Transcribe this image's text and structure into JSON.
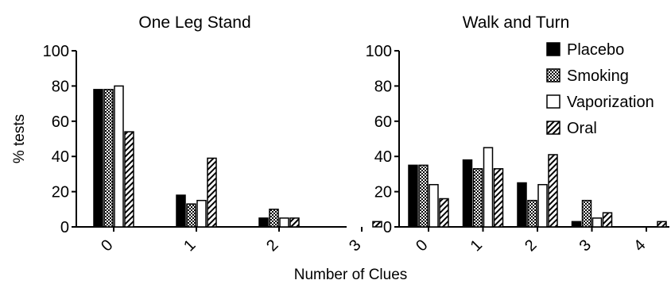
{
  "ylabel": "% tests",
  "xlabel": "Number of Clues",
  "legend": [
    {
      "name": "Placebo",
      "pattern": "solid"
    },
    {
      "name": "Smoking",
      "pattern": "checker"
    },
    {
      "name": "Vaporization",
      "pattern": "white"
    },
    {
      "name": "Oral",
      "pattern": "hatch"
    }
  ],
  "chart_data": [
    {
      "type": "bar",
      "title": "One Leg Stand",
      "ylim": [
        0,
        100
      ],
      "yticks": [
        "0",
        "20",
        "40",
        "60",
        "80",
        "100"
      ],
      "categories": [
        "0",
        "1",
        "2",
        "3"
      ],
      "series": [
        {
          "name": "Placebo",
          "values": [
            78,
            18,
            5,
            0
          ]
        },
        {
          "name": "Smoking",
          "values": [
            78,
            13,
            10,
            0
          ]
        },
        {
          "name": "Vaporization",
          "values": [
            80,
            15,
            5,
            0
          ]
        },
        {
          "name": "Oral",
          "values": [
            54,
            39,
            5,
            3
          ]
        }
      ]
    },
    {
      "type": "bar",
      "title": "Walk and Turn",
      "ylim": [
        0,
        100
      ],
      "yticks": [
        "0",
        "20",
        "40",
        "60",
        "80",
        "100"
      ],
      "categories": [
        "0",
        "1",
        "2",
        "3",
        "4"
      ],
      "series": [
        {
          "name": "Placebo",
          "values": [
            35,
            38,
            25,
            3,
            0
          ]
        },
        {
          "name": "Smoking",
          "values": [
            35,
            33,
            15,
            15,
            0
          ]
        },
        {
          "name": "Vaporization",
          "values": [
            24,
            45,
            24,
            5,
            0
          ]
        },
        {
          "name": "Oral",
          "values": [
            16,
            33,
            41,
            8,
            3
          ]
        }
      ]
    }
  ]
}
